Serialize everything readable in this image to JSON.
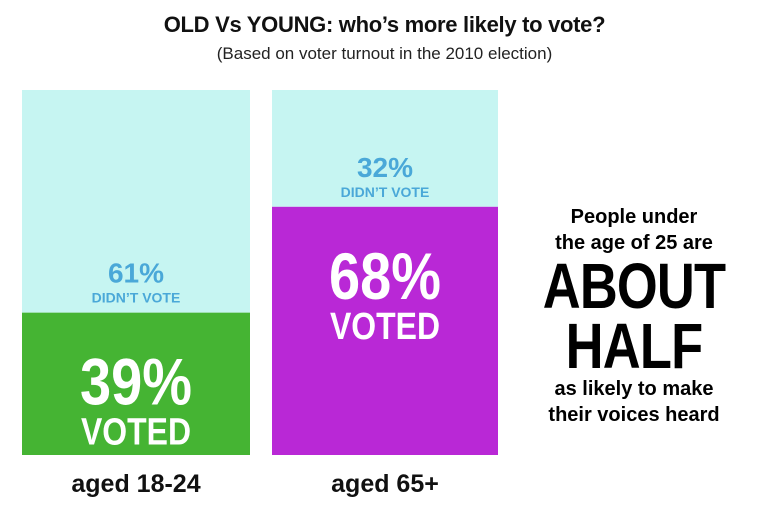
{
  "title": "OLD Vs YOUNG: who’s more likely to vote?",
  "subtitle": "(Based on voter turnout in the 2010 election)",
  "callout": {
    "line1": "People under",
    "line2": "the age of 25 are",
    "line3": "ABOUT",
    "line4": "HALF",
    "line5": "as likely to make",
    "line6": "their voices heard"
  },
  "colors": {
    "didnt_vote_fill": "#c6f5f2",
    "didnt_vote_text": "#4aa8d8",
    "young_voted": "#45b433",
    "old_voted": "#b928d6",
    "voted_text": "#ffffff"
  },
  "chart_data": {
    "type": "bar",
    "stacked": true,
    "title": "OLD Vs YOUNG: who’s more likely to vote?",
    "subtitle": "(Based on voter turnout in the 2010 election)",
    "categories": [
      "aged 18-24",
      "aged 65+"
    ],
    "series": [
      {
        "name": "VOTED",
        "values": [
          39,
          68
        ],
        "labels": [
          "39%",
          "68%"
        ]
      },
      {
        "name": "DIDN’T VOTE",
        "values": [
          61,
          32
        ],
        "labels": [
          "61%",
          "32%"
        ]
      }
    ],
    "ylim": [
      0,
      100
    ],
    "grid": false
  }
}
